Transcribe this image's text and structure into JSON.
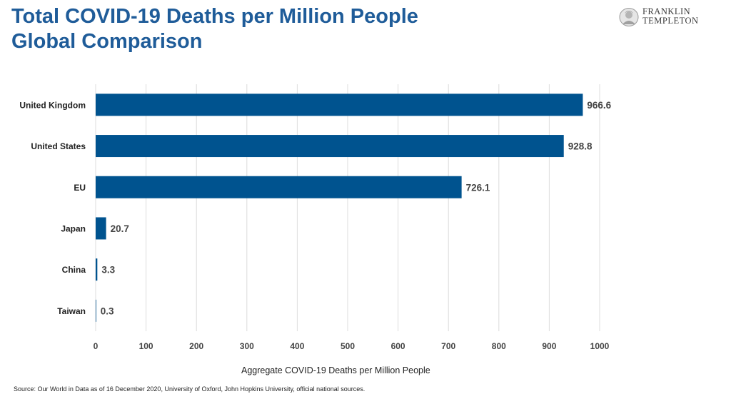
{
  "header": {
    "title_line1": "Total COVID-19 Deaths per Million People",
    "title_line2": "Global Comparison",
    "logo_line1": "FRANKLIN",
    "logo_line2": "TEMPLETON"
  },
  "footer": {
    "source": "Source: Our World in Data as of 16 December 2020, University of Oxford, John Hopkins University, official national sources."
  },
  "colors": {
    "bar": "#00538f",
    "title": "#1f5c99",
    "grid": "#dcdcdc"
  },
  "chart_data": {
    "type": "bar",
    "orientation": "horizontal",
    "categories": [
      "United Kingdom",
      "United States",
      "EU",
      "Japan",
      "China",
      "Taiwan"
    ],
    "values": [
      966.6,
      928.8,
      726.1,
      20.7,
      3.3,
      0.3
    ],
    "value_labels": [
      "966.6",
      "928.8",
      "726.1",
      "20.7",
      "3.3",
      "0.3"
    ],
    "xlabel": "Aggregate COVID-19 Deaths per Million People",
    "xlim": [
      0,
      1000
    ],
    "xticks": [
      0,
      100,
      200,
      300,
      400,
      500,
      600,
      700,
      800,
      900,
      1000
    ],
    "grid": true,
    "legend": "none"
  }
}
